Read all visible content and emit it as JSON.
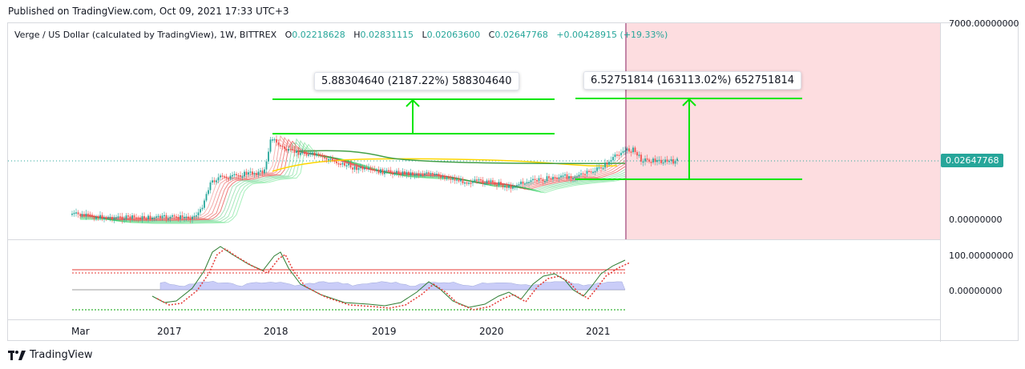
{
  "header": {
    "published": "Published on TradingView.com, Oct 09, 2021 17:33 UTC+3"
  },
  "legend": {
    "symbol": "Verge / US Dollar (calculated by TradingView), 1W, BITTREX",
    "o_label": "O",
    "o": "0.02218628",
    "h_label": "H",
    "h": "0.02831115",
    "l_label": "L",
    "l": "0.02063600",
    "c_label": "C",
    "c": "0.02647768",
    "change": "+0.00428915 (+19.33%)"
  },
  "price_axis": {
    "top": "7000.00000000",
    "last": "0.02647768",
    "bottom": "0.00000000"
  },
  "osc_axis": {
    "top": "100.00000000",
    "mid": "0.00000000"
  },
  "annotations": {
    "measure1": "5.88304640 (2187.22%) 588304640",
    "measure2": "6.52751814 (163113.02%) 652751814"
  },
  "footer": {
    "brand": "TradingView"
  },
  "colors": {
    "up": "#26a69a",
    "down": "#ef5350",
    "measure": "#00e600",
    "forecast_zone": "#fddde0",
    "ribbon_green": "#00c853",
    "ribbon_red": "#e53935"
  },
  "chart_data": {
    "type": "line",
    "title": "",
    "xlabel": "",
    "ylabel": "",
    "scale": "log",
    "x": [
      "Mar",
      "2017",
      "2018",
      "2019",
      "2020",
      "2021"
    ],
    "series": [
      {
        "values": [
          0.0003,
          0.002,
          0.25,
          0.012,
          0.004,
          0.026
        ]
      }
    ],
    "last_price": 0.02647768,
    "legend_placement": "top-left",
    "grid": false
  }
}
